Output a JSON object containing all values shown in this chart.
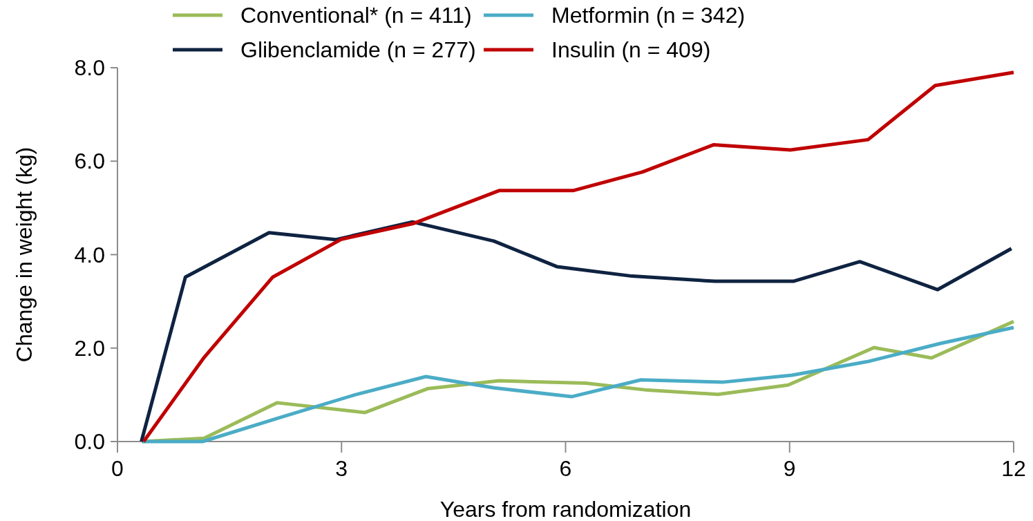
{
  "chart_data": {
    "type": "line",
    "xlabel": "Years from randomization",
    "ylabel": "Change in weight (kg)",
    "xlim": [
      0,
      12
    ],
    "xticks": [
      0,
      3,
      6,
      9,
      12
    ],
    "ylim": [
      0,
      8
    ],
    "yticks": [
      {
        "value": 0,
        "label": "0.0"
      },
      {
        "value": 2,
        "label": "2.0"
      },
      {
        "value": 4,
        "label": "4.0"
      },
      {
        "value": 6,
        "label": "6.0"
      },
      {
        "value": 8,
        "label": "8.0"
      }
    ],
    "grid": false,
    "legend": "top",
    "marker": "none",
    "line_style": "solid",
    "series": [
      {
        "name": "Conventional* (n = 411)",
        "color": "#9bbb59",
        "x": [
          0.33,
          1.16,
          2.14,
          3.31,
          4.15,
          5.11,
          6.27,
          7.1,
          8.04,
          8.98,
          10.13,
          10.9,
          12
        ],
        "values": [
          0,
          0.07,
          0.83,
          0.62,
          1.13,
          1.3,
          1.25,
          1.1,
          1.01,
          1.21,
          2.01,
          1.79,
          2.57
        ]
      },
      {
        "name": "Metformin (n = 342)",
        "color": "#4bacc6",
        "x": [
          0.33,
          1.14,
          2.15,
          3.18,
          4.13,
          5.04,
          6.08,
          7.01,
          8.1,
          9.03,
          10.07,
          11.02,
          12
        ],
        "values": [
          0,
          0,
          0.5,
          1.0,
          1.39,
          1.15,
          0.96,
          1.32,
          1.27,
          1.42,
          1.72,
          2.1,
          2.44
        ]
      },
      {
        "name": "Glibenclamide (n = 277)",
        "color": "#0f2341",
        "x": [
          0.32,
          0.91,
          2.03,
          2.92,
          3.95,
          5.04,
          5.89,
          6.89,
          8.0,
          9.05,
          9.94,
          10.98,
          11.97
        ],
        "values": [
          0,
          3.52,
          4.47,
          4.32,
          4.7,
          4.29,
          3.74,
          3.54,
          3.43,
          3.43,
          3.85,
          3.25,
          4.13
        ]
      },
      {
        "name": "Insulin (n = 409)",
        "color": "#c00000",
        "x": [
          0.35,
          1.16,
          2.08,
          3.0,
          3.97,
          5.11,
          6.1,
          7.03,
          7.98,
          9.01,
          10.05,
          10.95,
          12
        ],
        "values": [
          0,
          1.8,
          3.52,
          4.33,
          4.67,
          5.37,
          5.37,
          5.77,
          6.35,
          6.24,
          6.46,
          7.62,
          7.9
        ]
      }
    ]
  }
}
